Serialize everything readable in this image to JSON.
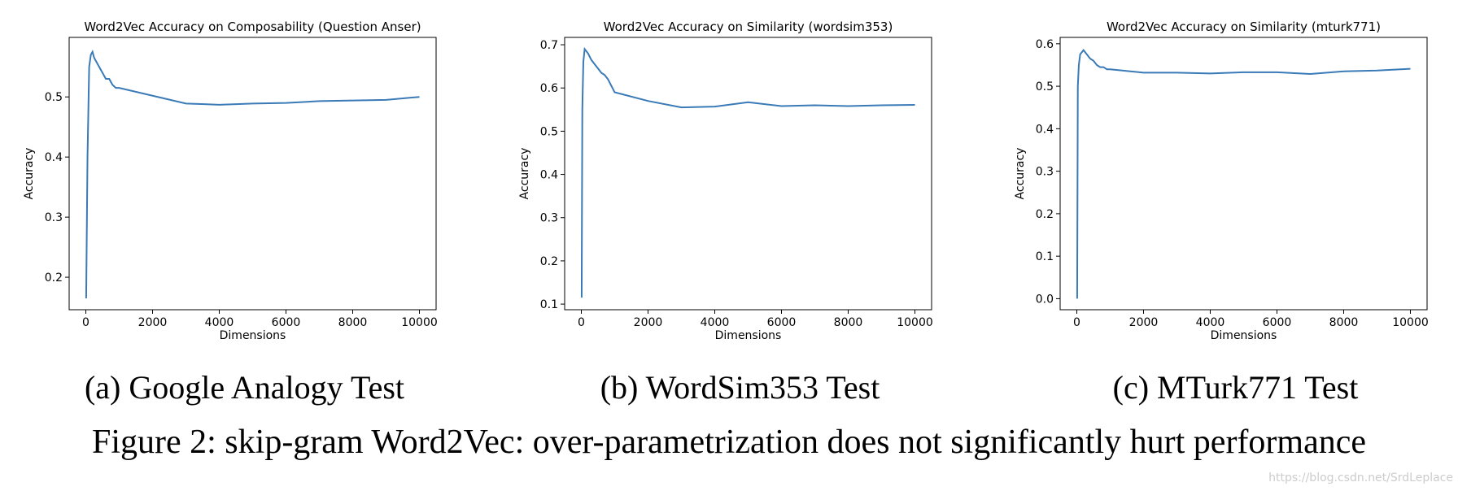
{
  "chart_data": [
    {
      "type": "line",
      "title": "Word2Vec Accuracy on Composability (Question Anser)",
      "xlabel": "Dimensions",
      "ylabel": "Accuracy",
      "caption": "(a) Google Analogy Test",
      "xlim": [
        -500,
        10500
      ],
      "ylim": [
        0.146,
        0.599
      ],
      "xticks": [
        0,
        2000,
        4000,
        6000,
        8000,
        10000
      ],
      "yticks": [
        0.2,
        0.3,
        0.4,
        0.5
      ],
      "series": [
        {
          "color": "#3a7ab7",
          "x": [
            10,
            50,
            100,
            150,
            200,
            250,
            300,
            400,
            500,
            600,
            700,
            800,
            900,
            1000,
            2000,
            3000,
            4000,
            5000,
            6000,
            7000,
            8000,
            9000,
            10000
          ],
          "values": [
            0.165,
            0.4,
            0.55,
            0.57,
            0.575,
            0.565,
            0.56,
            0.55,
            0.54,
            0.53,
            0.53,
            0.52,
            0.515,
            0.515,
            0.502,
            0.489,
            0.487,
            0.489,
            0.49,
            0.493,
            0.494,
            0.495,
            0.5
          ]
        }
      ]
    },
    {
      "type": "line",
      "title": "Word2Vec Accuracy on Similarity (wordsim353)",
      "xlabel": "Dimensions",
      "ylabel": "Accuracy",
      "caption": "(b) WordSim353 Test",
      "xlim": [
        -500,
        10500
      ],
      "ylim": [
        0.087,
        0.717
      ],
      "xticks": [
        0,
        2000,
        4000,
        6000,
        8000,
        10000
      ],
      "yticks": [
        0.1,
        0.2,
        0.3,
        0.4,
        0.5,
        0.6,
        0.7
      ],
      "series": [
        {
          "color": "#3a7ab7",
          "x": [
            10,
            30,
            60,
            100,
            200,
            300,
            400,
            500,
            600,
            700,
            800,
            900,
            1000,
            2000,
            3000,
            4000,
            5000,
            6000,
            7000,
            8000,
            9000,
            10000
          ],
          "values": [
            0.115,
            0.55,
            0.66,
            0.69,
            0.68,
            0.665,
            0.655,
            0.645,
            0.635,
            0.63,
            0.62,
            0.605,
            0.59,
            0.57,
            0.555,
            0.557,
            0.567,
            0.558,
            0.56,
            0.558,
            0.56,
            0.561
          ]
        }
      ]
    },
    {
      "type": "line",
      "title": "Word2Vec Accuracy on Similarity (mturk771)",
      "xlabel": "Dimensions",
      "ylabel": "Accuracy",
      "caption": "(c) MTurk771 Test",
      "xlim": [
        -500,
        10500
      ],
      "ylim": [
        -0.026,
        0.615
      ],
      "xticks": [
        0,
        2000,
        4000,
        6000,
        8000,
        10000
      ],
      "yticks": [
        {
          "value": 0,
          "label": "0.0"
        },
        0.1,
        0.2,
        0.3,
        0.4,
        0.5,
        0.6
      ],
      "series": [
        {
          "color": "#3a7ab7",
          "x": [
            10,
            30,
            60,
            100,
            200,
            300,
            400,
            500,
            600,
            700,
            800,
            900,
            1000,
            2000,
            3000,
            4000,
            5000,
            6000,
            7000,
            8000,
            9000,
            10000
          ],
          "values": [
            0.0,
            0.5,
            0.55,
            0.575,
            0.585,
            0.575,
            0.565,
            0.56,
            0.55,
            0.545,
            0.545,
            0.54,
            0.54,
            0.532,
            0.532,
            0.53,
            0.533,
            0.533,
            0.529,
            0.535,
            0.537,
            0.541
          ]
        }
      ]
    }
  ],
  "figure_caption": "Figure 2: skip-gram Word2Vec: over-parametrization does not significantly hurt performance",
  "watermark": "https://blog.csdn.net/SrdLeplace"
}
